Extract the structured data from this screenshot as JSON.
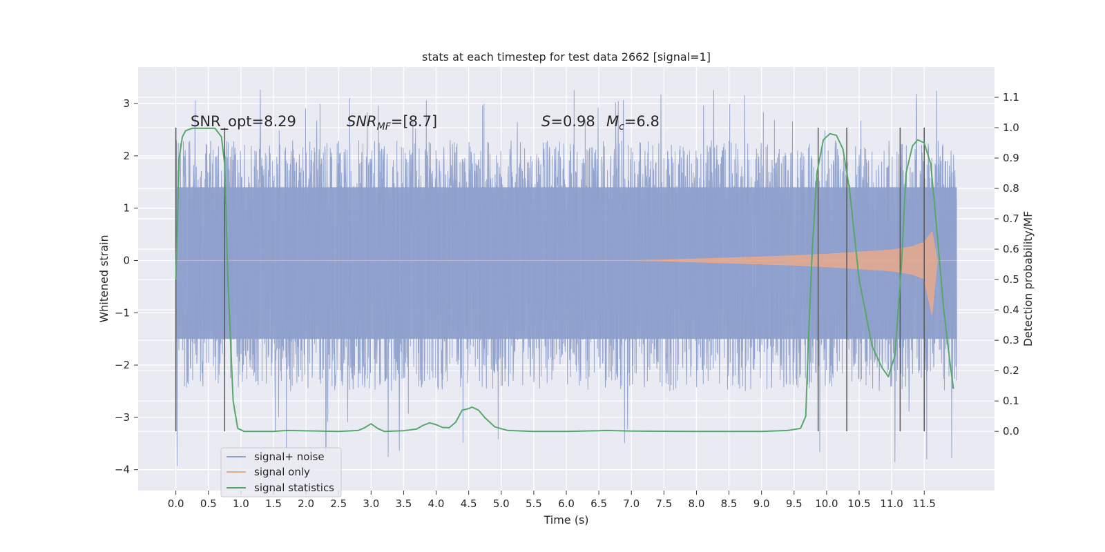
{
  "chart_data": {
    "type": "line",
    "title": "stats at each timestep for test data 2662 [signal=1]",
    "xlabel": "Time (s)",
    "ylabel": "Whitened strain",
    "y2label": "Detection probability/MF",
    "xlim": [
      -0.58,
      12.58
    ],
    "xticks": [
      "0.0",
      "0.5",
      "1.0",
      "1.5",
      "2.0",
      "2.5",
      "3.0",
      "3.5",
      "4.0",
      "4.5",
      "5.0",
      "5.5",
      "6.0",
      "6.5",
      "7.0",
      "7.5",
      "8.0",
      "8.5",
      "9.0",
      "9.5",
      "10.0",
      "10.5",
      "11.0",
      "11.5"
    ],
    "ylim": [
      -4.4,
      3.7
    ],
    "yticks": [
      "3",
      "2",
      "1",
      "0",
      "−1",
      "−2",
      "−3",
      "−4"
    ],
    "y2lim": [
      -0.195,
      1.2
    ],
    "y2ticks": [
      "0.0",
      "0.1",
      "0.2",
      "0.3",
      "0.4",
      "0.5",
      "0.6",
      "0.7",
      "0.8",
      "0.9",
      "1.0",
      "1.1"
    ],
    "grid": true,
    "legend_position": "lower-left",
    "annotations": {
      "snr_opt": "SNR_opt=8.29",
      "snr_mf_base": "SNR",
      "snr_mf_sub": "MF",
      "snr_mf_value": "=[8.7]",
      "s_label": "S",
      "s_value": "=0.98",
      "mc_base": "M",
      "mc_sub": "c",
      "mc_value": "=6.8"
    },
    "series": [
      {
        "name": "signal+ noise",
        "color": "#8ea0cc",
        "axis": "left",
        "x_range": [
          0.0,
          12.0
        ],
        "envelope_upper": 1.4,
        "envelope_lower": -1.5,
        "peak_max": 3.3,
        "peak_min": -4.1
      },
      {
        "name": "signal only",
        "color": "#dd8452",
        "axis": "left",
        "x": [
          0.0,
          7.0,
          7.5,
          8.0,
          8.5,
          9.0,
          9.5,
          10.0,
          10.5,
          11.0,
          11.3,
          11.5,
          11.62,
          11.7,
          12.0
        ],
        "amplitude": [
          0.0,
          0.0,
          0.01,
          0.03,
          0.05,
          0.07,
          0.09,
          0.12,
          0.16,
          0.2,
          0.26,
          0.35,
          0.55,
          0.0,
          0.0
        ]
      },
      {
        "name": "signal statistics",
        "color": "#55a868",
        "axis": "right",
        "x": [
          0.0,
          0.05,
          0.1,
          0.15,
          0.25,
          0.4,
          0.6,
          0.7,
          0.75,
          0.8,
          0.88,
          0.95,
          1.05,
          1.5,
          1.7,
          2.5,
          2.8,
          2.9,
          3.0,
          3.1,
          3.2,
          3.5,
          3.7,
          3.8,
          3.9,
          4.0,
          4.1,
          4.2,
          4.3,
          4.4,
          4.5,
          4.55,
          4.65,
          4.75,
          4.9,
          5.1,
          5.5,
          6.0,
          6.5,
          6.6,
          7.0,
          8.0,
          9.0,
          9.4,
          9.6,
          9.68,
          9.72,
          9.78,
          9.85,
          9.95,
          10.05,
          10.15,
          10.25,
          10.35,
          10.5,
          10.7,
          10.85,
          10.95,
          11.05,
          11.15,
          11.22,
          11.32,
          11.4,
          11.5,
          11.6,
          11.7,
          11.8,
          11.9,
          11.95
        ],
        "values": [
          0.5,
          0.9,
          0.97,
          0.99,
          0.998,
          0.998,
          0.998,
          0.97,
          0.88,
          0.5,
          0.1,
          0.01,
          0.0,
          0.0,
          0.003,
          0.0,
          0.003,
          0.012,
          0.025,
          0.01,
          0.0,
          0.002,
          0.008,
          0.02,
          0.028,
          0.022,
          0.013,
          0.012,
          0.03,
          0.07,
          0.075,
          0.08,
          0.07,
          0.045,
          0.015,
          0.003,
          0.0,
          0.0,
          0.002,
          0.003,
          0.001,
          0.0,
          0.0,
          0.003,
          0.01,
          0.05,
          0.3,
          0.6,
          0.85,
          0.96,
          0.98,
          0.975,
          0.93,
          0.8,
          0.5,
          0.28,
          0.21,
          0.18,
          0.25,
          0.55,
          0.85,
          0.94,
          0.96,
          0.95,
          0.88,
          0.65,
          0.4,
          0.22,
          0.14
        ]
      }
    ],
    "vertical_markers": [
      0.0,
      0.75,
      9.87,
      10.31,
      11.13,
      11.5
    ],
    "marker_color": "#555555"
  }
}
